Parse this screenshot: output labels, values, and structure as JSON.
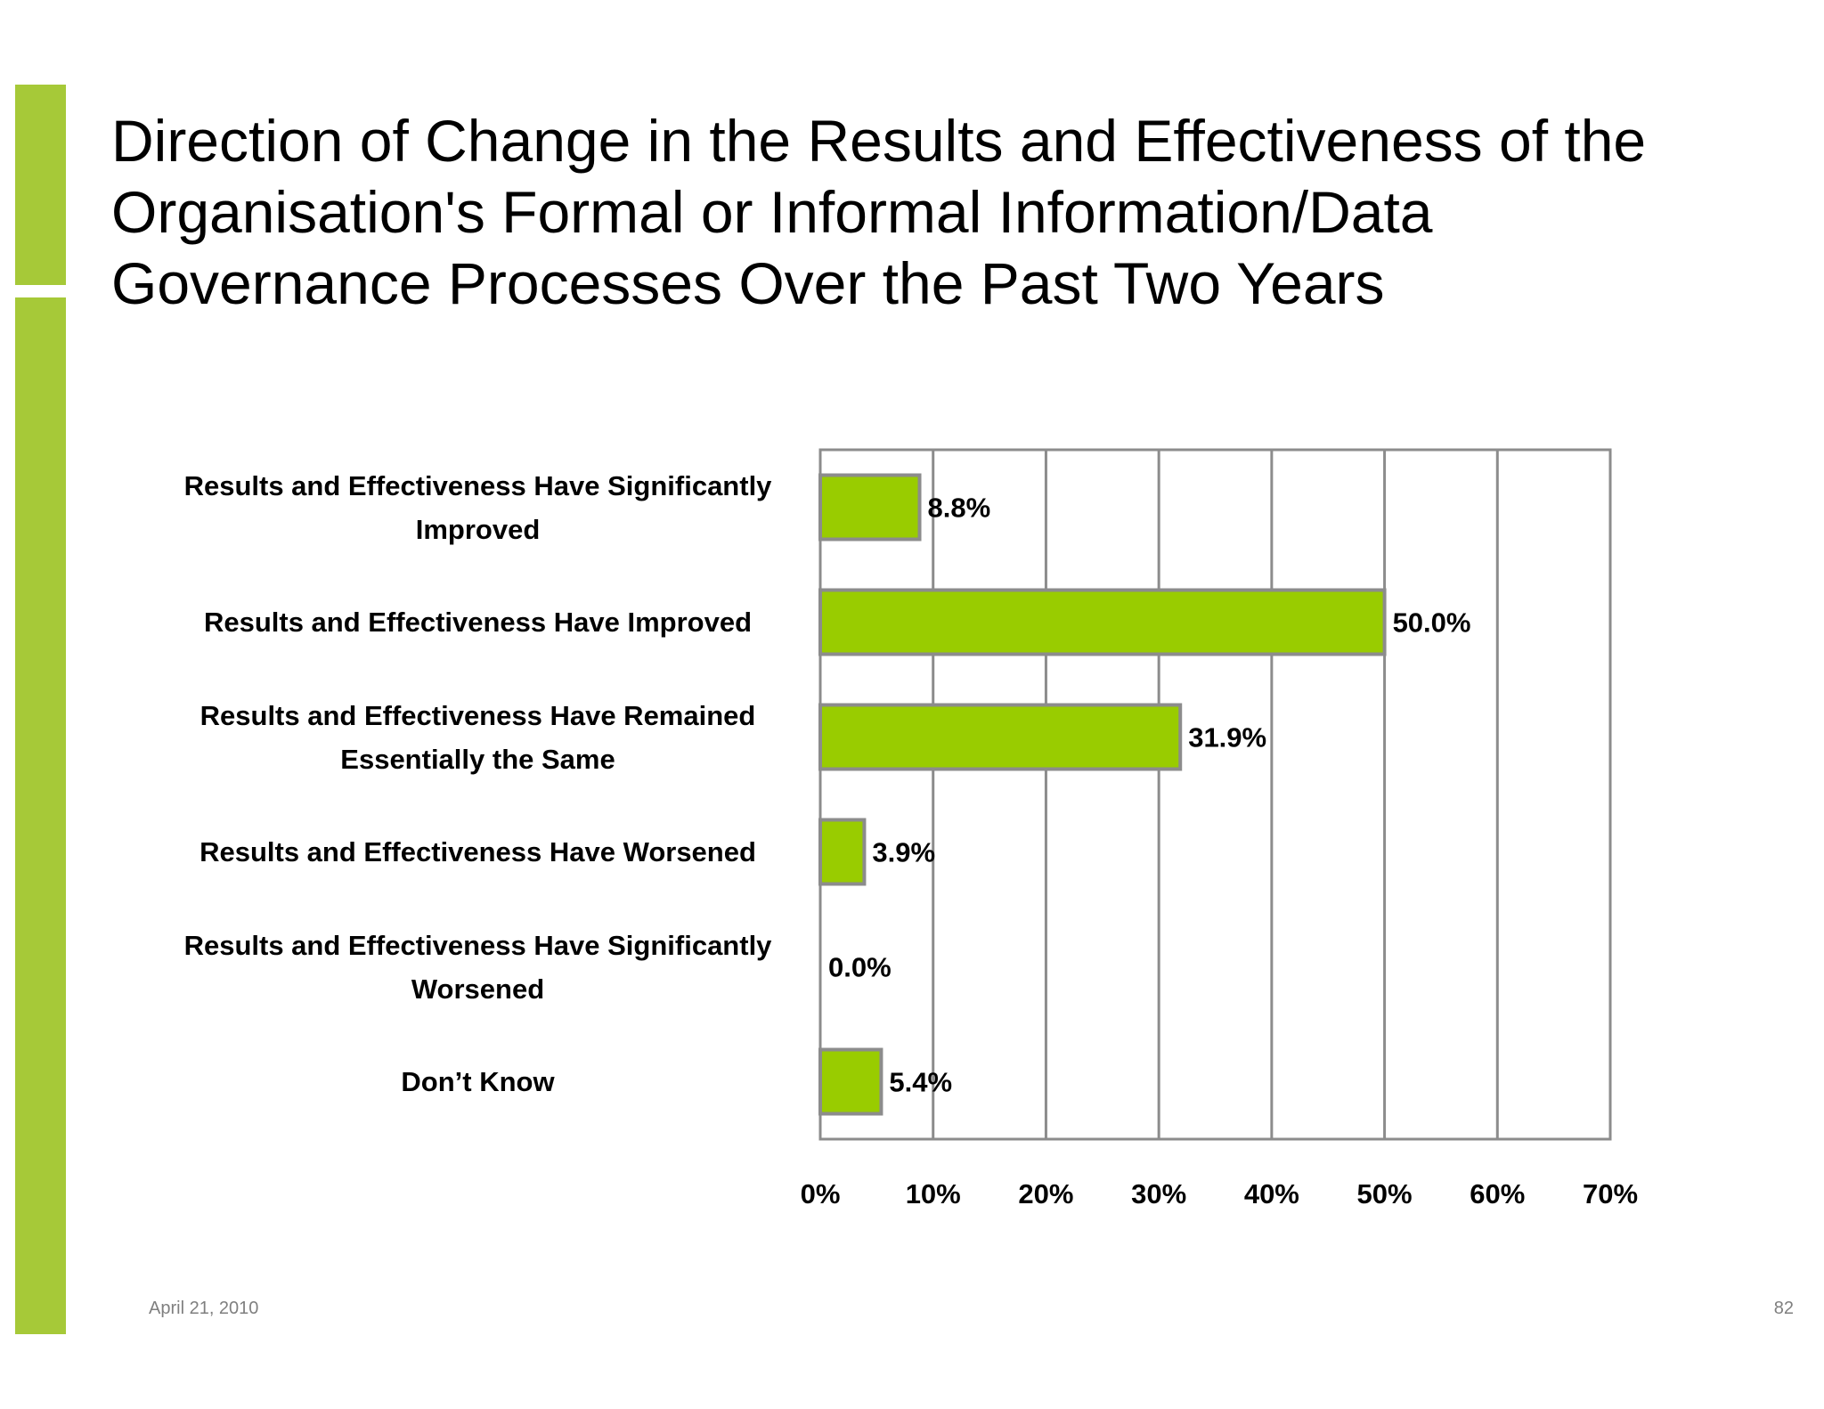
{
  "slide": {
    "title": "Direction of Change in the Results and Effectiveness of the\nOrganisation's Formal or Informal Information/Data\nGovernance Processes Over the Past Two Years",
    "footer_date": "April 21, 2010",
    "page_number": "82",
    "accent_color": "#a6c938"
  },
  "chart_data": {
    "type": "bar",
    "orientation": "horizontal",
    "categories": [
      "Results and Effectiveness Have Significantly Improved",
      "Results and Effectiveness Have Improved",
      "Results and Effectiveness Have Remained Essentially the Same",
      "Results and Effectiveness Have Worsened",
      "Results and Effectiveness Have Significantly Worsened",
      "Don’t Know"
    ],
    "values": [
      8.8,
      50.0,
      31.9,
      3.9,
      0.0,
      5.4
    ],
    "data_labels": [
      "8.8%",
      "50.0%",
      "31.9%",
      "3.9%",
      "0.0%",
      "5.4%"
    ],
    "xlim": [
      0,
      70
    ],
    "xticks": [
      0,
      10,
      20,
      30,
      40,
      50,
      60,
      70
    ],
    "xtick_labels": [
      "0%",
      "10%",
      "20%",
      "30%",
      "40%",
      "50%",
      "60%",
      "70%"
    ],
    "grid": true,
    "legend": "none",
    "bar_color": "#99cc00",
    "bar_edge_color": "#8c8c8c",
    "grid_color": "#8c8c8c"
  }
}
